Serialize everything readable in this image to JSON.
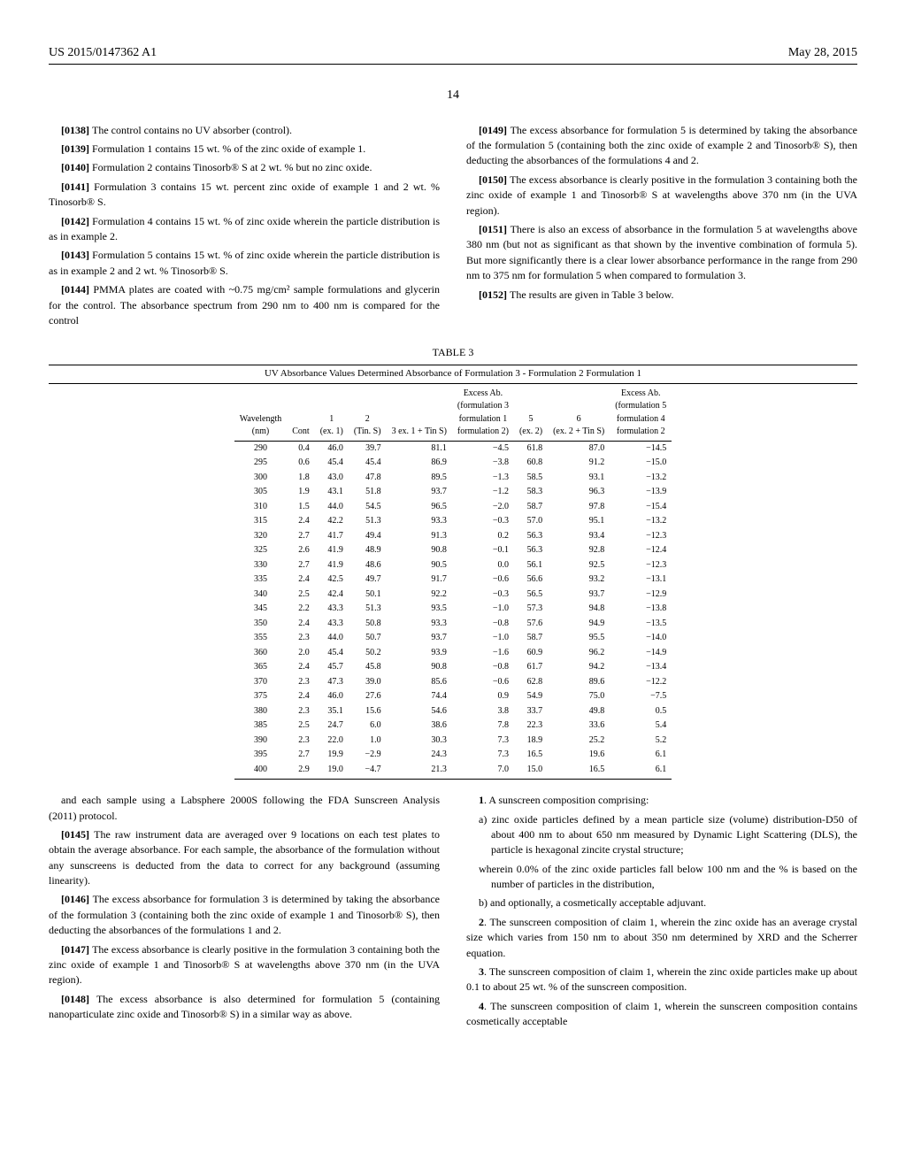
{
  "header": {
    "left": "US 2015/0147362 A1",
    "right": "May 28, 2015"
  },
  "page_number": "14",
  "left_paras": [
    {
      "num": "[0138]",
      "text": "The control contains no UV absorber (control)."
    },
    {
      "num": "[0139]",
      "text": "Formulation 1 contains 15 wt. % of the zinc oxide of example 1."
    },
    {
      "num": "[0140]",
      "text": "Formulation 2 contains Tinosorb® S at 2 wt. % but no zinc oxide."
    },
    {
      "num": "[0141]",
      "text": "Formulation 3 contains 15 wt. percent zinc oxide of example 1 and 2 wt. % Tinosorb® S."
    },
    {
      "num": "[0142]",
      "text": "Formulation 4 contains 15 wt. % of zinc oxide wherein the particle distribution is as in example 2."
    },
    {
      "num": "[0143]",
      "text": "Formulation 5 contains 15 wt. % of zinc oxide wherein the particle distribution is as in example 2 and 2 wt. % Tinosorb® S."
    },
    {
      "num": "[0144]",
      "text": "PMMA plates are coated with ~0.75 mg/cm² sample formulations and glycerin for the control. The absorbance spectrum from 290 nm to 400 nm is compared for the control"
    }
  ],
  "right_paras": [
    {
      "num": "[0149]",
      "text": "The excess absorbance for formulation 5 is determined by taking the absorbance of the formulation 5 (containing both the zinc oxide of example 2 and Tinosorb® S), then deducting the absorbances of the formulations 4 and 2."
    },
    {
      "num": "[0150]",
      "text": "The excess absorbance is clearly positive in the formulation 3 containing both the zinc oxide of example 1 and Tinosorb® S at wavelengths above 370 nm (in the UVA region)."
    },
    {
      "num": "[0151]",
      "text": "There is also an excess of absorbance in the formulation 5 at wavelengths above 380 nm (but not as significant as that shown by the inventive combination of formula 5). But more significantly there is a clear lower absorbance performance in the range from 290 nm to 375 nm for formulation 5 when compared to formulation 3."
    },
    {
      "num": "[0152]",
      "text": "The results are given in Table 3 below."
    }
  ],
  "table": {
    "label": "TABLE 3",
    "caption": "UV Absorbance Values Determined Absorbance of Formulation 3 - Formulation 2 Formulation 1",
    "columns": [
      "Wavelength (nm)",
      "Cont",
      "1 (ex. 1)",
      "2 (Tin. S)",
      "3 ex. 1 + Tin S)",
      "Excess Ab. (formulation 3 - formulation 1 - formulation 2)",
      "5 (ex. 2)",
      "6 (ex. 2 + Tin S)",
      "Excess Ab. (formulation 5 - formulation 4 - formulation 2"
    ],
    "rows": [
      [
        "290",
        "0.4",
        "46.0",
        "39.7",
        "81.1",
        "−4.5",
        "61.8",
        "87.0",
        "−14.5"
      ],
      [
        "295",
        "0.6",
        "45.4",
        "45.4",
        "86.9",
        "−3.8",
        "60.8",
        "91.2",
        "−15.0"
      ],
      [
        "300",
        "1.8",
        "43.0",
        "47.8",
        "89.5",
        "−1.3",
        "58.5",
        "93.1",
        "−13.2"
      ],
      [
        "305",
        "1.9",
        "43.1",
        "51.8",
        "93.7",
        "−1.2",
        "58.3",
        "96.3",
        "−13.9"
      ],
      [
        "310",
        "1.5",
        "44.0",
        "54.5",
        "96.5",
        "−2.0",
        "58.7",
        "97.8",
        "−15.4"
      ],
      [
        "315",
        "2.4",
        "42.2",
        "51.3",
        "93.3",
        "−0.3",
        "57.0",
        "95.1",
        "−13.2"
      ],
      [
        "320",
        "2.7",
        "41.7",
        "49.4",
        "91.3",
        "0.2",
        "56.3",
        "93.4",
        "−12.3"
      ],
      [
        "325",
        "2.6",
        "41.9",
        "48.9",
        "90.8",
        "−0.1",
        "56.3",
        "92.8",
        "−12.4"
      ],
      [
        "330",
        "2.7",
        "41.9",
        "48.6",
        "90.5",
        "0.0",
        "56.1",
        "92.5",
        "−12.3"
      ],
      [
        "335",
        "2.4",
        "42.5",
        "49.7",
        "91.7",
        "−0.6",
        "56.6",
        "93.2",
        "−13.1"
      ],
      [
        "340",
        "2.5",
        "42.4",
        "50.1",
        "92.2",
        "−0.3",
        "56.5",
        "93.7",
        "−12.9"
      ],
      [
        "345",
        "2.2",
        "43.3",
        "51.3",
        "93.5",
        "−1.0",
        "57.3",
        "94.8",
        "−13.8"
      ],
      [
        "350",
        "2.4",
        "43.3",
        "50.8",
        "93.3",
        "−0.8",
        "57.6",
        "94.9",
        "−13.5"
      ],
      [
        "355",
        "2.3",
        "44.0",
        "50.7",
        "93.7",
        "−1.0",
        "58.7",
        "95.5",
        "−14.0"
      ],
      [
        "360",
        "2.0",
        "45.4",
        "50.2",
        "93.9",
        "−1.6",
        "60.9",
        "96.2",
        "−14.9"
      ],
      [
        "365",
        "2.4",
        "45.7",
        "45.8",
        "90.8",
        "−0.8",
        "61.7",
        "94.2",
        "−13.4"
      ],
      [
        "370",
        "2.3",
        "47.3",
        "39.0",
        "85.6",
        "−0.6",
        "62.8",
        "89.6",
        "−12.2"
      ],
      [
        "375",
        "2.4",
        "46.0",
        "27.6",
        "74.4",
        "0.9",
        "54.9",
        "75.0",
        "−7.5"
      ],
      [
        "380",
        "2.3",
        "35.1",
        "15.6",
        "54.6",
        "3.8",
        "33.7",
        "49.8",
        "0.5"
      ],
      [
        "385",
        "2.5",
        "24.7",
        "6.0",
        "38.6",
        "7.8",
        "22.3",
        "33.6",
        "5.4"
      ],
      [
        "390",
        "2.3",
        "22.0",
        "1.0",
        "30.3",
        "7.3",
        "18.9",
        "25.2",
        "5.2"
      ],
      [
        "395",
        "2.7",
        "19.9",
        "−2.9",
        "24.3",
        "7.3",
        "16.5",
        "19.6",
        "6.1"
      ],
      [
        "400",
        "2.9",
        "19.0",
        "−4.7",
        "21.3",
        "7.0",
        "15.0",
        "16.5",
        "6.1"
      ]
    ]
  },
  "bottom_left": [
    {
      "num": "",
      "text": "and each sample using a Labsphere 2000S following the FDA Sunscreen Analysis (2011) protocol."
    },
    {
      "num": "[0145]",
      "text": "The raw instrument data are averaged over 9 locations on each test plates to obtain the average absorbance. For each sample, the absorbance of the formulation without any sunscreens is deducted from the data to correct for any background (assuming linearity)."
    },
    {
      "num": "[0146]",
      "text": "The excess absorbance for formulation 3 is determined by taking the absorbance of the formulation 3 (containing both the zinc oxide of example 1 and Tinosorb® S), then deducting the absorbances of the formulations 1 and 2."
    },
    {
      "num": "[0147]",
      "text": "The excess absorbance is clearly positive in the formulation 3 containing both the zinc oxide of example 1 and Tinosorb® S at wavelengths above 370 nm (in the UVA region)."
    },
    {
      "num": "[0148]",
      "text": "The excess absorbance is also determined for formulation 5 (containing nanoparticulate zinc oxide and Tinosorb® S) in a similar way as above."
    }
  ],
  "claims": [
    {
      "num": "1",
      "lead": ". A sunscreen composition comprising:",
      "body": [
        "a) zinc oxide particles defined by a mean particle size (volume) distribution-D50 of about 400 nm to about 650 nm measured by Dynamic Light Scattering (DLS), the particle is hexagonal zincite crystal structure;",
        "wherein 0.0% of the zinc oxide particles fall below 100 nm and the % is based on the number of particles in the distribution,",
        "b) and optionally, a cosmetically acceptable adjuvant."
      ]
    },
    {
      "num": "2",
      "lead": ". The sunscreen composition of claim 1, wherein the zinc oxide has an average crystal size which varies from 150 nm to about 350 nm determined by XRD and the Scherrer equation.",
      "body": []
    },
    {
      "num": "3",
      "lead": ". The sunscreen composition of claim 1, wherein the zinc oxide particles make up about 0.1 to about 25 wt. % of the sunscreen composition.",
      "body": []
    },
    {
      "num": "4",
      "lead": ". The sunscreen composition of claim 1, wherein the sunscreen composition contains cosmetically acceptable",
      "body": []
    }
  ]
}
